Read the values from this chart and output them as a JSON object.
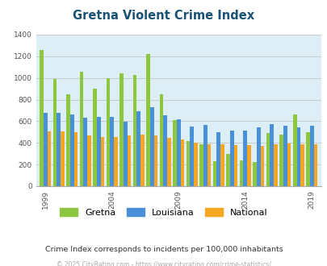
{
  "title": "Gretna Violent Crime Index",
  "subtitle": "Crime Index corresponds to incidents per 100,000 inhabitants",
  "footer": "© 2025 CityRating.com - https://www.cityrating.com/crime-statistics/",
  "years": [
    1999,
    2000,
    2001,
    2002,
    2003,
    2004,
    2005,
    2006,
    2007,
    2008,
    2009,
    2010,
    2011,
    2012,
    2013,
    2014,
    2015,
    2016,
    2017,
    2018,
    2019
  ],
  "gretna": [
    1255,
    990,
    850,
    1060,
    900,
    1000,
    1040,
    1025,
    1220,
    850,
    610,
    415,
    385,
    230,
    300,
    235,
    220,
    490,
    480,
    665,
    500
  ],
  "louisiana": [
    680,
    680,
    660,
    635,
    640,
    640,
    595,
    690,
    730,
    655,
    620,
    550,
    565,
    500,
    515,
    515,
    545,
    570,
    560,
    545,
    555
  ],
  "national": [
    505,
    505,
    495,
    470,
    455,
    455,
    470,
    475,
    470,
    450,
    430,
    405,
    390,
    385,
    380,
    380,
    375,
    390,
    395,
    390,
    385
  ],
  "gretna_color": "#8dc63f",
  "louisiana_color": "#4a90d9",
  "national_color": "#f5a623",
  "plot_bg_color": "#ddeef6",
  "ylim": [
    0,
    1400
  ],
  "yticks": [
    0,
    200,
    400,
    600,
    800,
    1000,
    1200,
    1400
  ],
  "xtick_years": [
    1999,
    2004,
    2009,
    2014,
    2019
  ],
  "title_color": "#1a5276",
  "subtitle_color": "#333333",
  "footer_color": "#aaaaaa",
  "bar_width": 0.28,
  "legend_labels": [
    "Gretna",
    "Louisiana",
    "National"
  ]
}
